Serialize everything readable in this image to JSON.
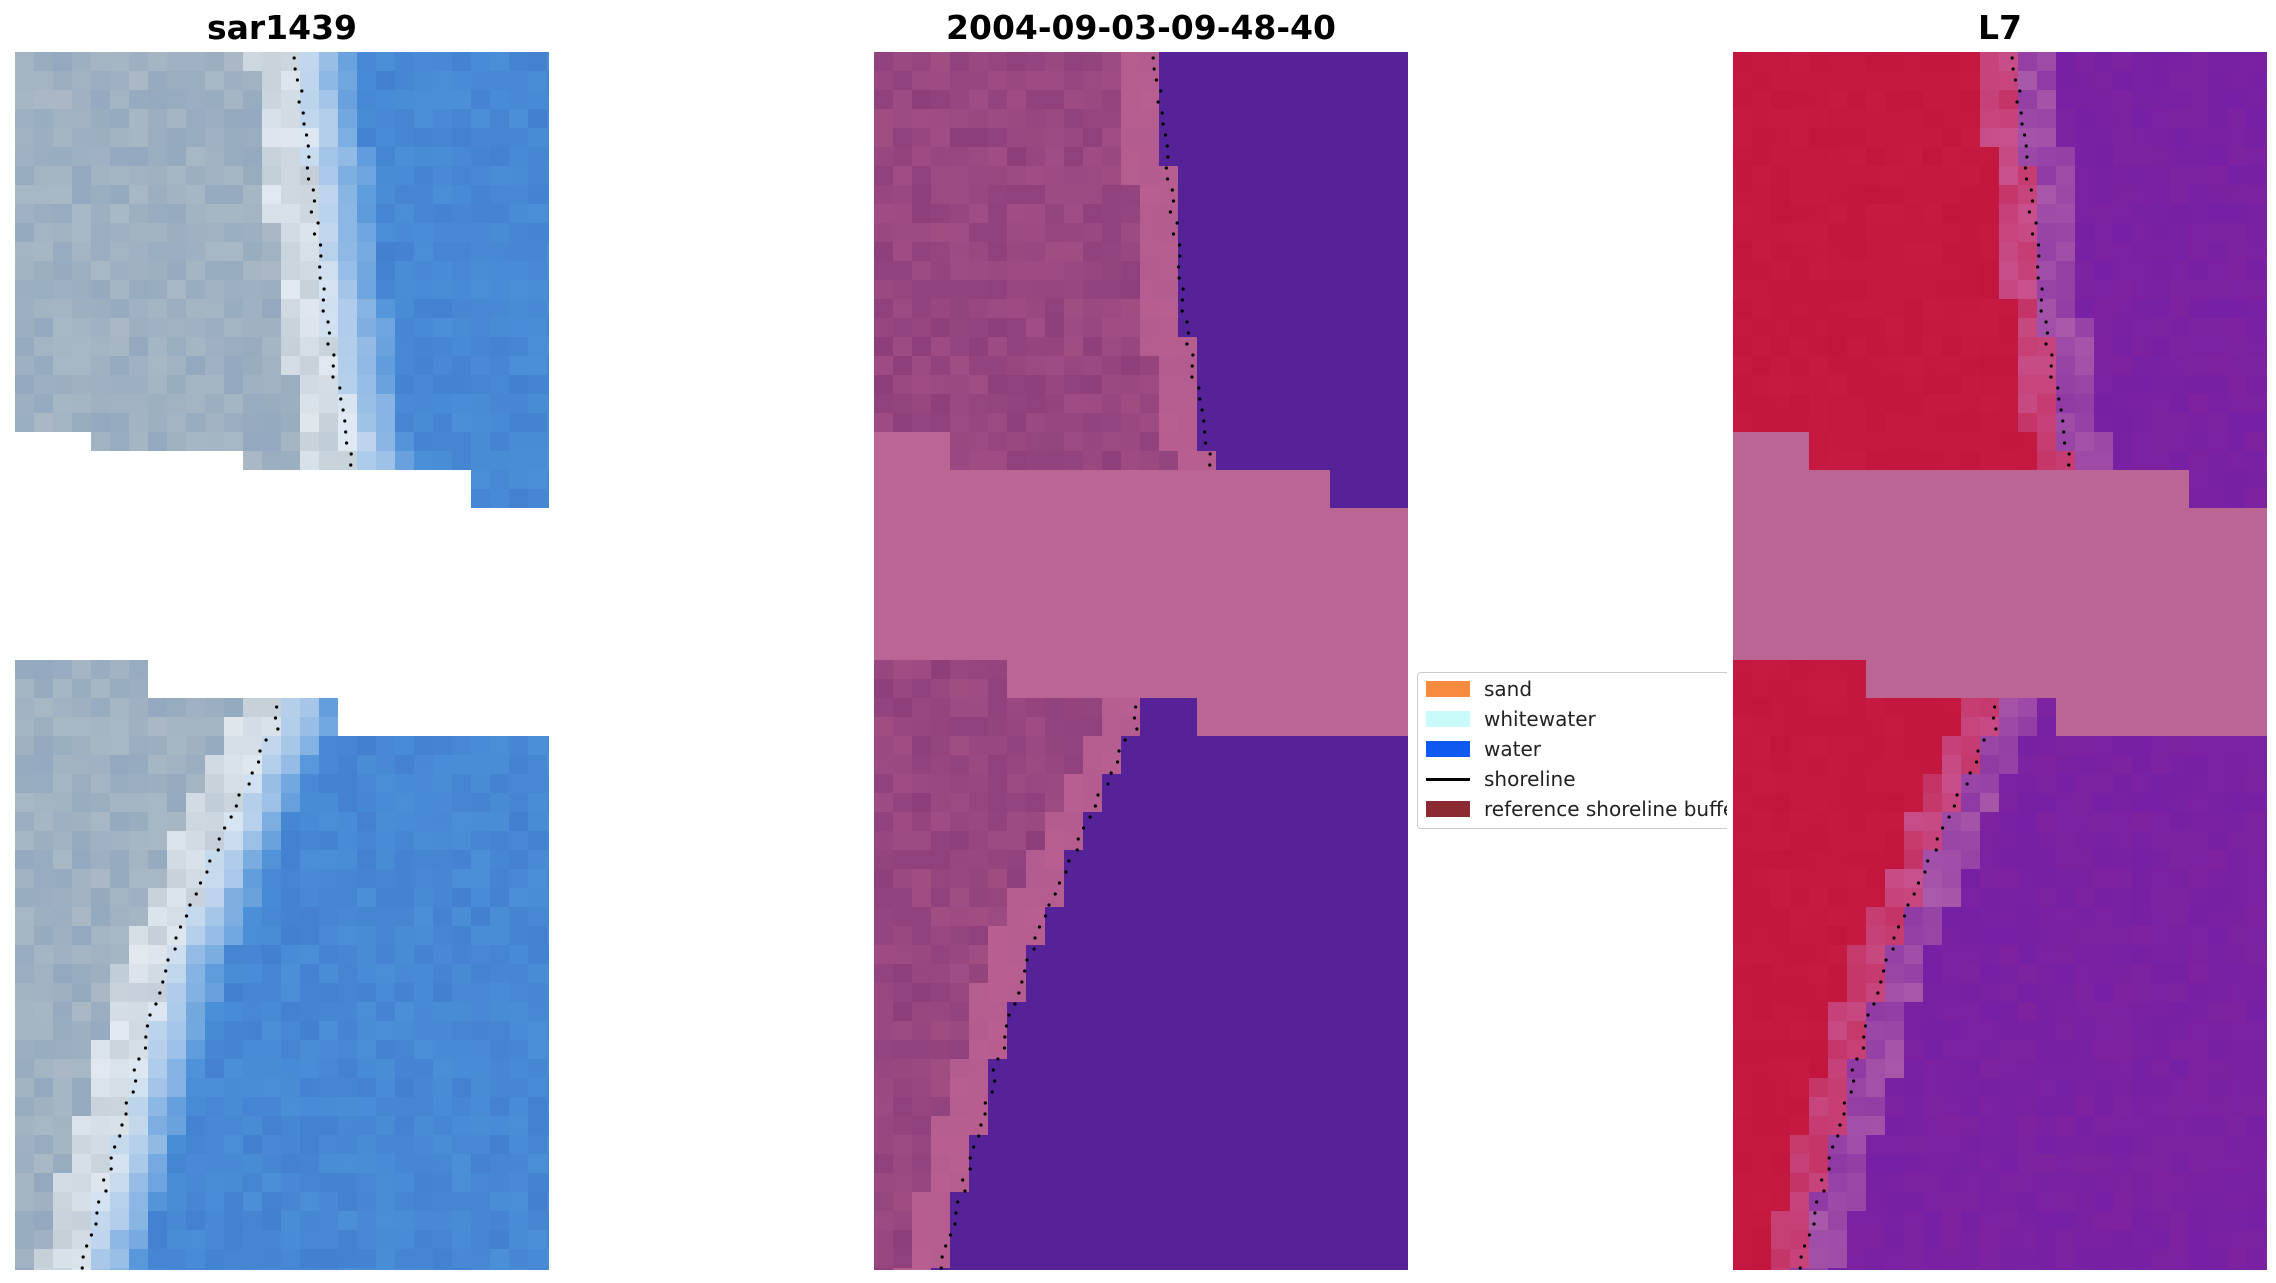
{
  "panels": [
    {
      "id": "rgb",
      "title": "sar1439",
      "image": "rgb-image-icon"
    },
    {
      "id": "classified",
      "title": "2004-09-03-09-48-40",
      "image": "classified-image-icon"
    },
    {
      "id": "mndwi",
      "title": "L7",
      "image": "index-image-icon"
    }
  ],
  "legend": {
    "items": [
      {
        "label": "sand",
        "color": "#f88b3f",
        "kind": "patch"
      },
      {
        "label": "whitewater",
        "color": "#c9fbfb",
        "kind": "patch"
      },
      {
        "label": "water",
        "color": "#0e5af0",
        "kind": "patch"
      },
      {
        "label": "shoreline",
        "color": "#000000",
        "kind": "line"
      },
      {
        "label": "reference shoreline buffer",
        "color": "#8b2a33",
        "kind": "patch"
      }
    ]
  },
  "colors": {
    "buffer_overlay": "#bb6595",
    "rgb_sand": "#a9b8c4",
    "rgb_whitewater": "#e8eef4",
    "rgb_water": "#4a8fd8",
    "class_land": "#8e3f7a",
    "class_land_light": "#b35c8f",
    "class_water": "#552397",
    "index_land": "#c2163e",
    "index_water": "#7e22a0"
  }
}
